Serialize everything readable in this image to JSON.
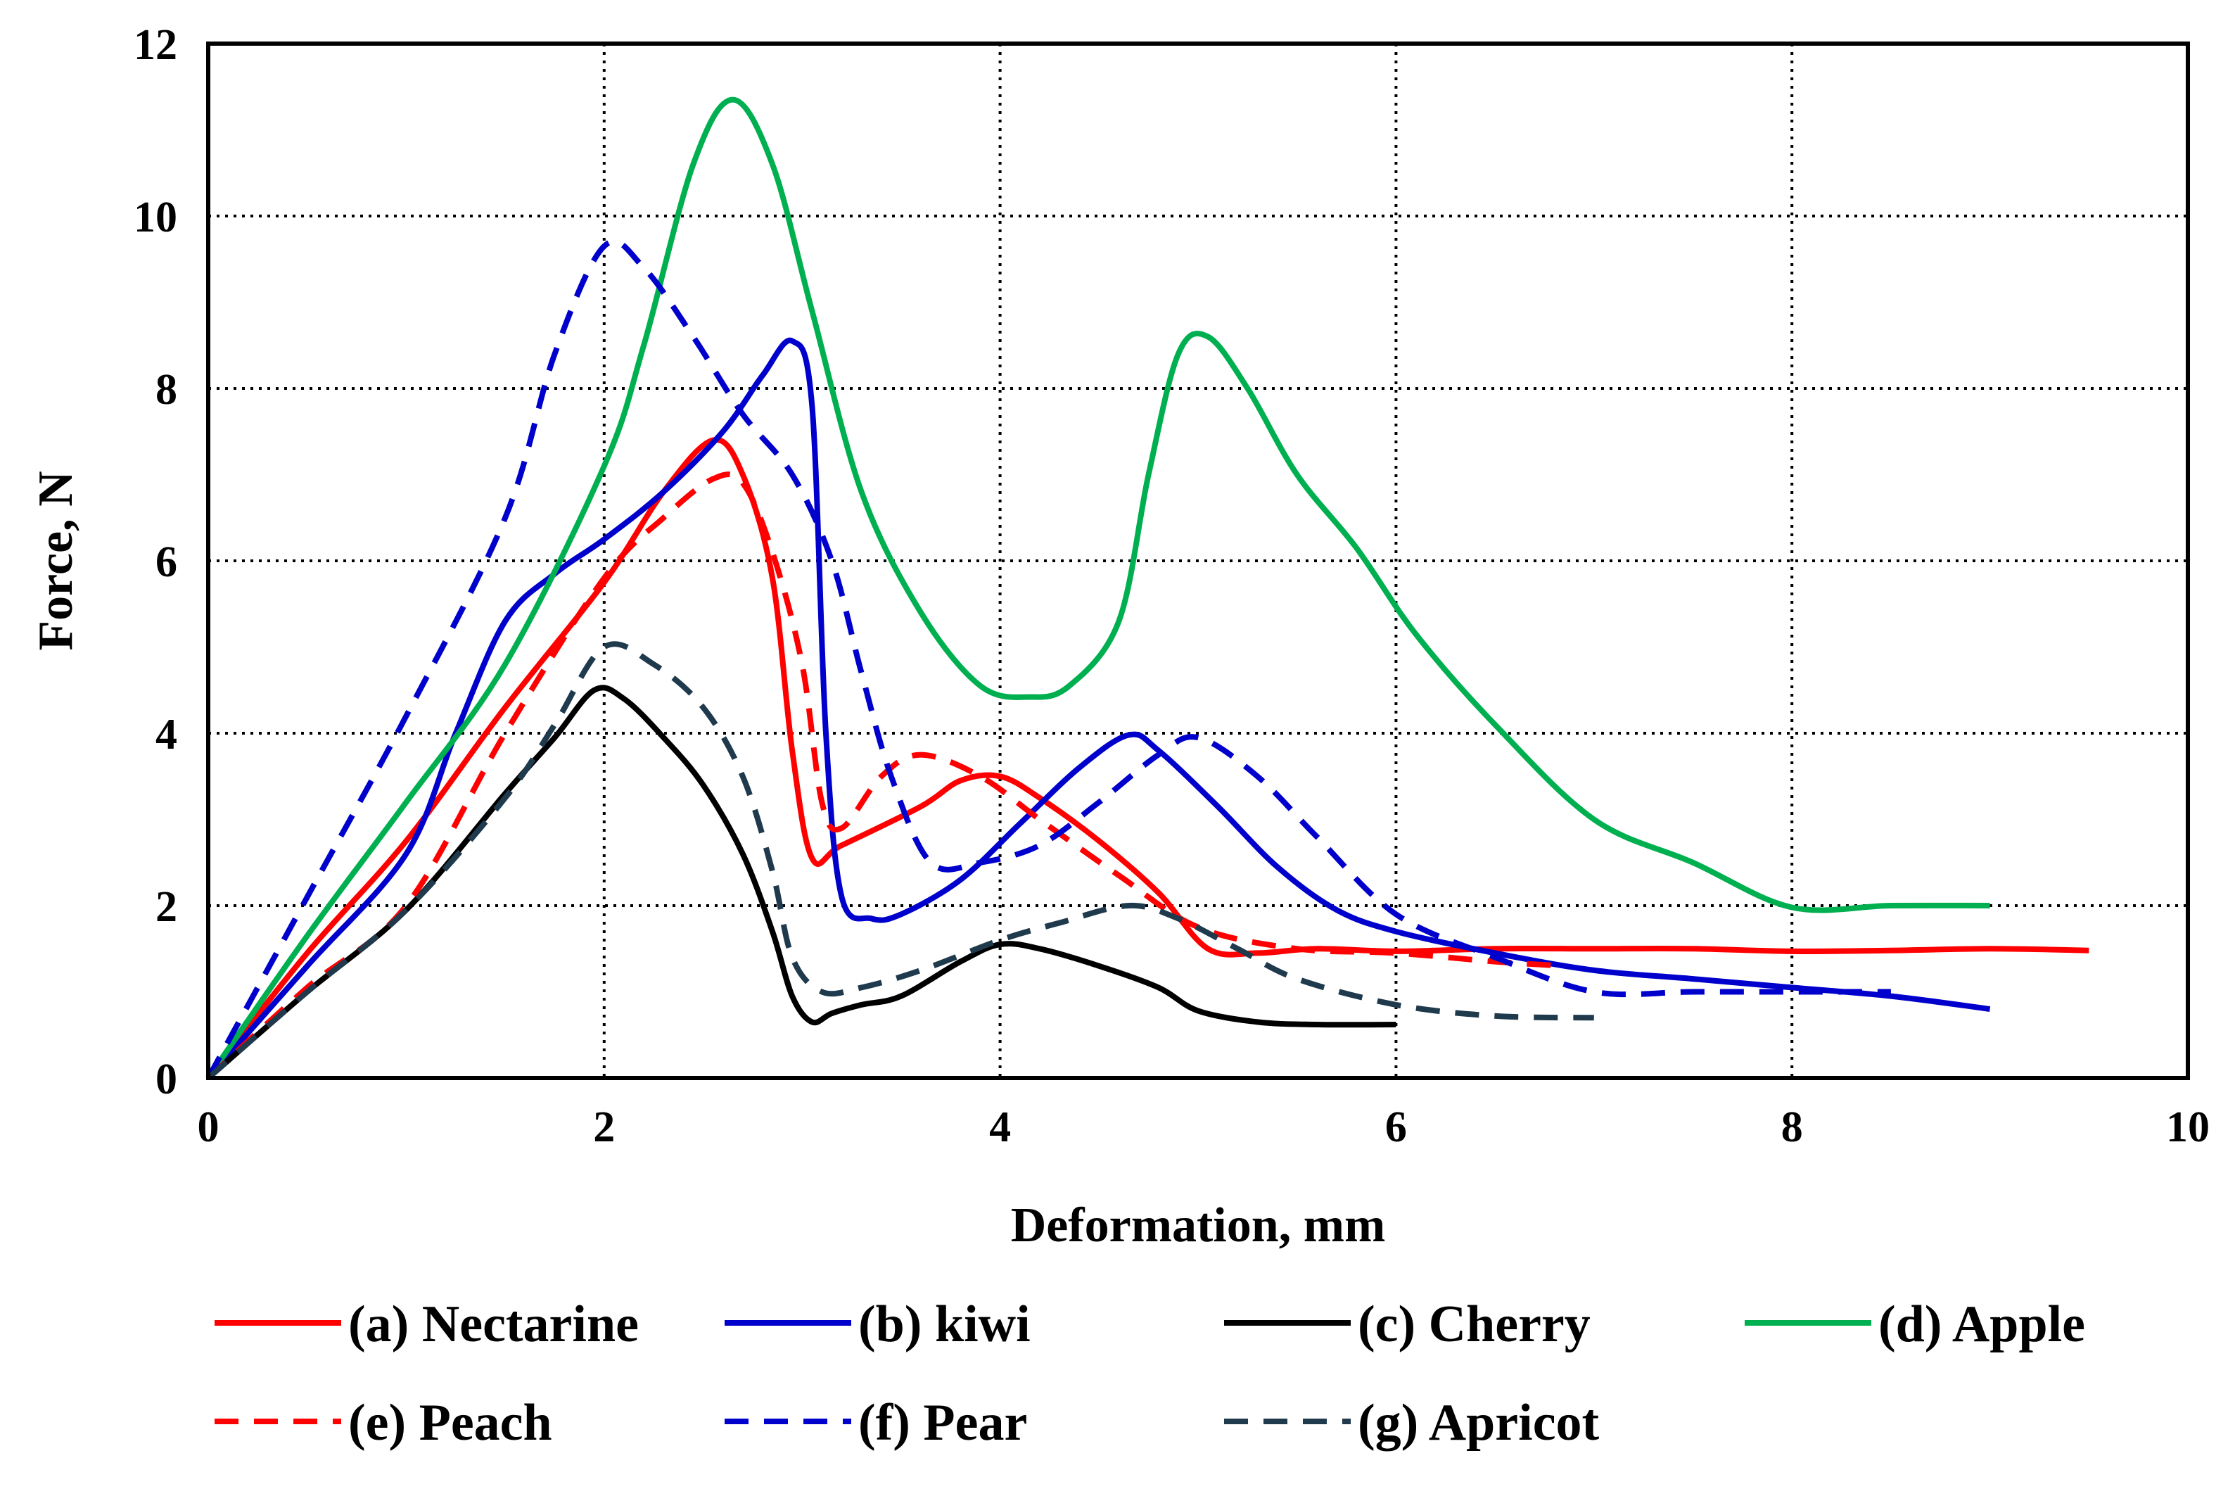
{
  "chart_data": {
    "type": "line",
    "title": "",
    "xlabel": "Deformation, mm",
    "ylabel": "Force, N",
    "xlim": [
      0,
      10
    ],
    "ylim": [
      0,
      12
    ],
    "xticks": [
      0,
      2,
      4,
      6,
      8,
      10
    ],
    "yticks": [
      0,
      2,
      4,
      6,
      8,
      10,
      12
    ],
    "grid": "dotted major gridlines",
    "legend_position": "bottom",
    "series": [
      {
        "name": "(a) Nectarine",
        "color": "#ff0000",
        "dash": "solid",
        "points": [
          [
            0,
            0
          ],
          [
            0.5,
            1.45
          ],
          [
            1,
            2.75
          ],
          [
            1.5,
            4.3
          ],
          [
            2,
            5.75
          ],
          [
            2.3,
            6.8
          ],
          [
            2.55,
            7.4
          ],
          [
            2.7,
            7.0
          ],
          [
            2.85,
            5.8
          ],
          [
            2.95,
            3.8
          ],
          [
            3.05,
            2.55
          ],
          [
            3.2,
            2.7
          ],
          [
            3.6,
            3.15
          ],
          [
            3.8,
            3.45
          ],
          [
            4.0,
            3.5
          ],
          [
            4.2,
            3.25
          ],
          [
            4.5,
            2.75
          ],
          [
            4.8,
            2.15
          ],
          [
            5.05,
            1.5
          ],
          [
            5.3,
            1.45
          ],
          [
            5.6,
            1.5
          ],
          [
            6,
            1.47
          ],
          [
            6.5,
            1.5
          ],
          [
            7,
            1.5
          ],
          [
            7.5,
            1.5
          ],
          [
            8,
            1.47
          ],
          [
            8.5,
            1.48
          ],
          [
            9,
            1.5
          ],
          [
            9.5,
            1.48
          ]
        ]
      },
      {
        "name": "(b) kiwi",
        "color": "#0000cc",
        "dash": "solid",
        "points": [
          [
            0,
            0
          ],
          [
            0.5,
            1.3
          ],
          [
            1,
            2.6
          ],
          [
            1.25,
            4.0
          ],
          [
            1.5,
            5.3
          ],
          [
            1.75,
            5.85
          ],
          [
            2,
            6.25
          ],
          [
            2.3,
            6.8
          ],
          [
            2.6,
            7.5
          ],
          [
            2.8,
            8.15
          ],
          [
            2.95,
            8.55
          ],
          [
            3.05,
            7.8
          ],
          [
            3.12,
            4.0
          ],
          [
            3.2,
            2.1
          ],
          [
            3.35,
            1.85
          ],
          [
            3.5,
            1.9
          ],
          [
            3.8,
            2.3
          ],
          [
            4.1,
            2.95
          ],
          [
            4.4,
            3.6
          ],
          [
            4.65,
            3.98
          ],
          [
            4.8,
            3.8
          ],
          [
            5.1,
            3.15
          ],
          [
            5.4,
            2.45
          ],
          [
            5.7,
            1.95
          ],
          [
            6,
            1.7
          ],
          [
            6.5,
            1.45
          ],
          [
            7,
            1.25
          ],
          [
            7.5,
            1.15
          ],
          [
            8,
            1.05
          ],
          [
            8.5,
            0.95
          ],
          [
            9,
            0.8
          ]
        ]
      },
      {
        "name": "(c) Cherry",
        "color": "#000000",
        "dash": "solid",
        "points": [
          [
            0,
            0
          ],
          [
            0.5,
            1.0
          ],
          [
            1,
            1.95
          ],
          [
            1.5,
            3.3
          ],
          [
            1.75,
            3.95
          ],
          [
            1.95,
            4.5
          ],
          [
            2.1,
            4.4
          ],
          [
            2.3,
            3.95
          ],
          [
            2.5,
            3.4
          ],
          [
            2.7,
            2.6
          ],
          [
            2.85,
            1.7
          ],
          [
            2.95,
            0.95
          ],
          [
            3.05,
            0.65
          ],
          [
            3.15,
            0.75
          ],
          [
            3.3,
            0.85
          ],
          [
            3.5,
            0.95
          ],
          [
            3.8,
            1.35
          ],
          [
            4,
            1.55
          ],
          [
            4.2,
            1.5
          ],
          [
            4.5,
            1.3
          ],
          [
            4.8,
            1.05
          ],
          [
            5,
            0.78
          ],
          [
            5.3,
            0.65
          ],
          [
            5.6,
            0.62
          ],
          [
            6,
            0.62
          ]
        ]
      },
      {
        "name": "(d) Apple",
        "color": "#00b050",
        "dash": "solid",
        "points": [
          [
            0,
            0
          ],
          [
            0.5,
            1.65
          ],
          [
            1,
            3.2
          ],
          [
            1.5,
            4.8
          ],
          [
            2,
            7.1
          ],
          [
            2.2,
            8.5
          ],
          [
            2.45,
            10.6
          ],
          [
            2.65,
            11.35
          ],
          [
            2.85,
            10.6
          ],
          [
            3.05,
            8.9
          ],
          [
            3.3,
            6.8
          ],
          [
            3.6,
            5.4
          ],
          [
            3.9,
            4.55
          ],
          [
            4.15,
            4.42
          ],
          [
            4.35,
            4.55
          ],
          [
            4.6,
            5.3
          ],
          [
            4.75,
            7.0
          ],
          [
            4.9,
            8.4
          ],
          [
            5.05,
            8.6
          ],
          [
            5.25,
            8.0
          ],
          [
            5.5,
            7.0
          ],
          [
            5.8,
            6.15
          ],
          [
            6.1,
            5.15
          ],
          [
            6.5,
            4.1
          ],
          [
            7,
            3.0
          ],
          [
            7.5,
            2.5
          ],
          [
            8,
            1.98
          ],
          [
            8.5,
            2.0
          ],
          [
            9,
            2.0
          ]
        ]
      },
      {
        "name": "(e) Peach",
        "color": "#ff0000",
        "dash": "dashed",
        "points": [
          [
            0,
            0
          ],
          [
            0.5,
            1.05
          ],
          [
            1,
            2.0
          ],
          [
            1.5,
            4.0
          ],
          [
            2,
            5.8
          ],
          [
            2.3,
            6.5
          ],
          [
            2.55,
            6.95
          ],
          [
            2.7,
            6.9
          ],
          [
            2.85,
            6.1
          ],
          [
            3.0,
            4.8
          ],
          [
            3.1,
            3.2
          ],
          [
            3.2,
            2.9
          ],
          [
            3.4,
            3.5
          ],
          [
            3.6,
            3.75
          ],
          [
            3.9,
            3.5
          ],
          [
            4.2,
            3.0
          ],
          [
            4.6,
            2.35
          ],
          [
            5,
            1.75
          ],
          [
            5.5,
            1.5
          ],
          [
            6,
            1.45
          ],
          [
            6.5,
            1.35
          ],
          [
            6.85,
            1.3
          ]
        ]
      },
      {
        "name": "(f) Pear",
        "color": "#0000cc",
        "dash": "dashed",
        "points": [
          [
            0,
            0
          ],
          [
            0.5,
            2.1
          ],
          [
            1,
            4.2
          ],
          [
            1.5,
            6.5
          ],
          [
            1.75,
            8.4
          ],
          [
            2,
            9.65
          ],
          [
            2.2,
            9.4
          ],
          [
            2.45,
            8.6
          ],
          [
            2.7,
            7.7
          ],
          [
            2.95,
            7.0
          ],
          [
            3.15,
            6.0
          ],
          [
            3.3,
            4.7
          ],
          [
            3.45,
            3.5
          ],
          [
            3.65,
            2.5
          ],
          [
            3.9,
            2.5
          ],
          [
            4.2,
            2.7
          ],
          [
            4.5,
            3.2
          ],
          [
            4.8,
            3.75
          ],
          [
            5.0,
            3.95
          ],
          [
            5.3,
            3.5
          ],
          [
            5.6,
            2.8
          ],
          [
            6,
            1.9
          ],
          [
            6.5,
            1.4
          ],
          [
            7,
            1.0
          ],
          [
            7.5,
            1.0
          ],
          [
            8,
            1.0
          ],
          [
            8.5,
            1.0
          ]
        ]
      },
      {
        "name": "(g) Apricot",
        "color": "#1f3a4d",
        "dash": "dashed",
        "points": [
          [
            0,
            0
          ],
          [
            0.5,
            1.0
          ],
          [
            1,
            1.95
          ],
          [
            1.5,
            3.25
          ],
          [
            1.75,
            4.1
          ],
          [
            2,
            5.0
          ],
          [
            2.25,
            4.8
          ],
          [
            2.5,
            4.3
          ],
          [
            2.7,
            3.5
          ],
          [
            2.85,
            2.4
          ],
          [
            2.95,
            1.4
          ],
          [
            3.1,
            1.0
          ],
          [
            3.3,
            1.05
          ],
          [
            3.6,
            1.25
          ],
          [
            4,
            1.6
          ],
          [
            4.3,
            1.8
          ],
          [
            4.65,
            2.0
          ],
          [
            4.9,
            1.85
          ],
          [
            5.2,
            1.5
          ],
          [
            5.5,
            1.15
          ],
          [
            6,
            0.85
          ],
          [
            6.5,
            0.72
          ],
          [
            7,
            0.7
          ]
        ]
      }
    ]
  }
}
